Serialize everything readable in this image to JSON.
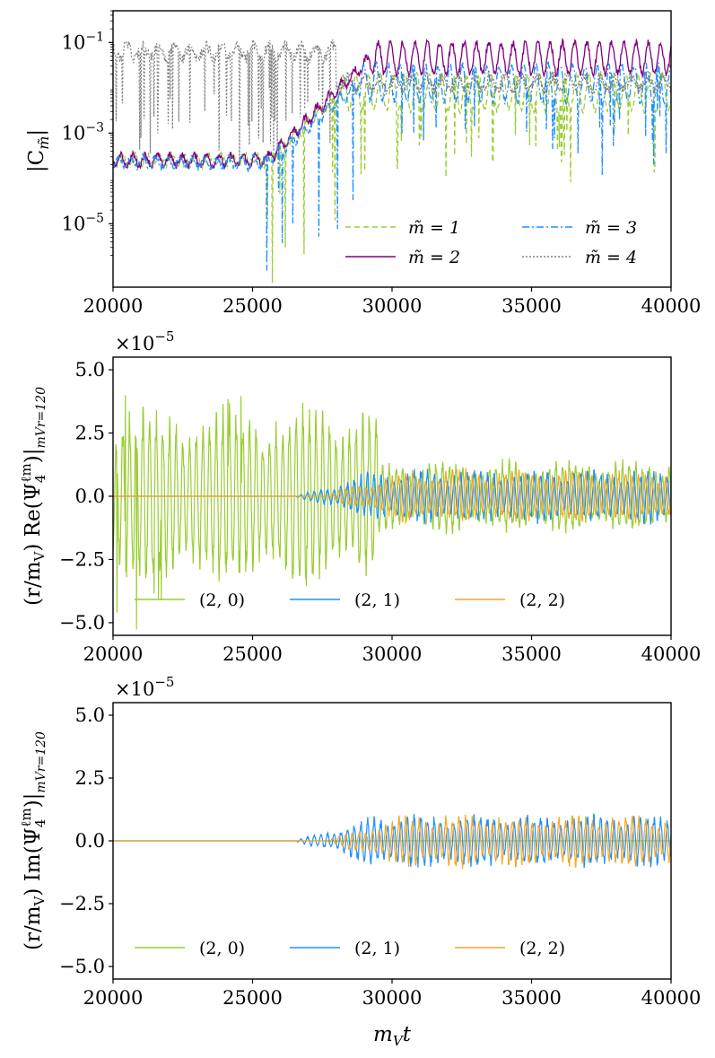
{
  "chart_data": [
    {
      "type": "line",
      "yscale": "log",
      "xlim": [
        20000,
        40000
      ],
      "ylim_log10": [
        -6.4,
        -0.3
      ],
      "xticks": [
        "20000",
        "25000",
        "30000",
        "35000",
        "40000"
      ],
      "yticks": [
        {
          "value": -1,
          "base": "10",
          "exp": "−1"
        },
        {
          "value": -3,
          "base": "10",
          "exp": "−3"
        },
        {
          "value": -5,
          "base": "10",
          "exp": "−5"
        }
      ],
      "ylabel_main": "|C",
      "ylabel_sub": "m̃",
      "ylabel_close": "|",
      "legend": {
        "position": "lower-right",
        "ncol": 2
      },
      "series": [
        {
          "name": "m̃ = 1",
          "color": "#9acd32",
          "dash": "6,4",
          "width": 1.3,
          "pre_level": -3.6,
          "post_level": -2.1,
          "post_amp": 0.4,
          "onset": 28200,
          "dips": true
        },
        {
          "name": "m̃ = 2",
          "color": "#800080",
          "dash": "",
          "width": 1.3,
          "pre_level": -3.6,
          "post_level": -1.35,
          "post_amp": 0.35,
          "onset": 29200,
          "dips": false
        },
        {
          "name": "m̃ = 3",
          "color": "#1e90ff",
          "dash": "8,3,2,3",
          "width": 1.3,
          "pre_level": -3.65,
          "post_level": -1.9,
          "post_amp": 0.4,
          "onset": 28800,
          "dips": true
        },
        {
          "name": "m̃ = 4",
          "color": "#808080",
          "dash": "2,2",
          "width": 1.2,
          "pre_level": -1.2,
          "post_level": -1.9,
          "post_amp": 0.4,
          "onset": 20000,
          "dips": true
        }
      ]
    },
    {
      "type": "line",
      "xlim": [
        20000,
        40000
      ],
      "ylim": [
        -5.5,
        5.5
      ],
      "scale_label": "×10",
      "scale_exp": "−5",
      "xticks": [
        "20000",
        "25000",
        "30000",
        "35000",
        "40000"
      ],
      "yticks": [
        {
          "value": 5.0,
          "label": "5.0"
        },
        {
          "value": 2.5,
          "label": "2.5"
        },
        {
          "value": 0.0,
          "label": "0.0"
        },
        {
          "value": -2.5,
          "label": "−2.5"
        },
        {
          "value": -5.0,
          "label": "−5.0"
        }
      ],
      "ylabel": "(r/mV) Re(Ψ4ℓm)|mVr=120",
      "ylabel_parts": {
        "pre": "(r/m",
        "v": "V",
        "mid": ") Re(Ψ",
        "four": "4",
        "lm": "ℓm",
        "post": ")|",
        "sub": "mVr=120"
      },
      "legend": {
        "position": "lower-center",
        "ncol": 3
      },
      "series": [
        {
          "name": "(2, 0)",
          "color": "#9acd32",
          "profile": "re20"
        },
        {
          "name": "(2, 1)",
          "color": "#1e90ff",
          "profile": "mode21"
        },
        {
          "name": "(2, 2)",
          "color": "#f5a623",
          "profile": "mode22"
        }
      ]
    },
    {
      "type": "line",
      "xlim": [
        20000,
        40000
      ],
      "ylim": [
        -5.5,
        5.5
      ],
      "scale_label": "×10",
      "scale_exp": "−5",
      "xticks": [
        "20000",
        "25000",
        "30000",
        "35000",
        "40000"
      ],
      "yticks": [
        {
          "value": 5.0,
          "label": "5.0"
        },
        {
          "value": 2.5,
          "label": "2.5"
        },
        {
          "value": 0.0,
          "label": "0.0"
        },
        {
          "value": -2.5,
          "label": "−2.5"
        },
        {
          "value": -5.0,
          "label": "−5.0"
        }
      ],
      "ylabel": "(r/mV) Im(Ψ4ℓm)|mVr=120",
      "ylabel_parts": {
        "pre": "(r/m",
        "v": "V",
        "mid": ") Im(Ψ",
        "four": "4",
        "lm": "ℓm",
        "post": ")|",
        "sub": "mVr=120"
      },
      "xlabel": "mVt",
      "xlabel_parts": {
        "m": "m",
        "v": "V",
        "t": "t"
      },
      "legend": {
        "position": "lower-center",
        "ncol": 3
      },
      "series": [
        {
          "name": "(2, 0)",
          "color": "#9acd32",
          "profile": "im20"
        },
        {
          "name": "(2, 1)",
          "color": "#1e90ff",
          "profile": "mode21"
        },
        {
          "name": "(2, 2)",
          "color": "#f5a623",
          "profile": "mode22"
        }
      ]
    }
  ]
}
